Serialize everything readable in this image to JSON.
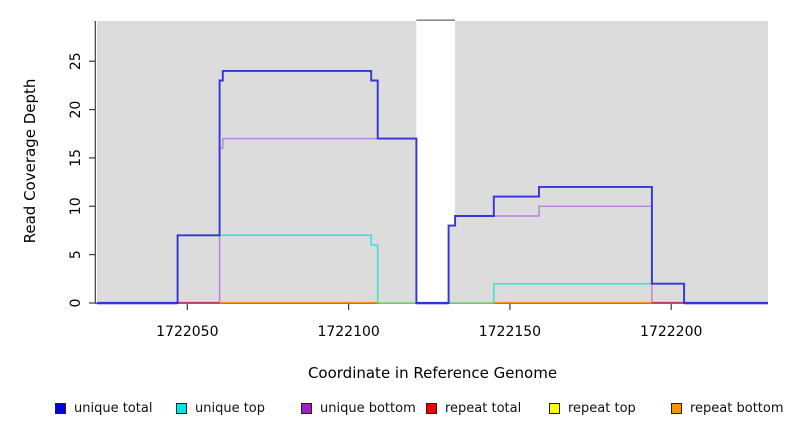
{
  "figure": {
    "xlabel": "Coordinate in Reference Genome",
    "ylabel": "Read Coverage Depth"
  },
  "chart_data": {
    "type": "line",
    "subtype": "step-coverage",
    "title": "",
    "xlabel": "Coordinate in Reference Genome",
    "ylabel": "Read Coverage Depth",
    "xlim": [
      1722022,
      1722230
    ],
    "ylim": [
      0,
      29
    ],
    "x_ticks": [
      1722050,
      1722100,
      1722150,
      1722200
    ],
    "y_ticks": [
      0,
      5,
      10,
      15,
      20,
      25
    ],
    "grid": false,
    "legend_position": "bottom",
    "series": [
      {
        "name": "unique total",
        "color": "#3434DA",
        "legend_color": "#0000EE",
        "steps": [
          [
            1722022,
            0
          ],
          [
            1722047,
            7
          ],
          [
            1722060,
            23
          ],
          [
            1722061,
            24
          ],
          [
            1722107,
            23
          ],
          [
            1722109,
            17
          ],
          [
            1722121,
            0
          ],
          [
            1722131,
            8
          ],
          [
            1722133,
            9
          ],
          [
            1722145,
            11
          ],
          [
            1722159,
            12
          ],
          [
            1722194,
            2
          ],
          [
            1722204,
            0
          ]
        ]
      },
      {
        "name": "unique top",
        "color": "#35E2D8",
        "legend_color": "#00E5EE",
        "steps": [
          [
            1722022,
            0
          ],
          [
            1722047,
            7
          ],
          [
            1722107,
            6
          ],
          [
            1722109,
            0
          ],
          [
            1722145,
            2
          ],
          [
            1722204,
            0
          ]
        ]
      },
      {
        "name": "unique bottom",
        "color": "#B77FDE",
        "legend_color": "#A21FCE",
        "steps": [
          [
            1722022,
            0
          ],
          [
            1722060,
            16
          ],
          [
            1722061,
            17
          ],
          [
            1722121,
            0
          ],
          [
            1722131,
            8
          ],
          [
            1722133,
            9
          ],
          [
            1722159,
            10
          ],
          [
            1722194,
            0
          ]
        ]
      },
      {
        "name": "repeat total",
        "color": "#DD2222",
        "legend_color": "#EE0000",
        "steps": [
          [
            1722022,
            0
          ]
        ]
      },
      {
        "name": "repeat top",
        "color": "#EEEE00",
        "legend_color": "#FFFF00",
        "steps": [
          [
            1722022,
            0
          ]
        ]
      },
      {
        "name": "repeat bottom",
        "color": "#FF8C1A",
        "legend_color": "#F59300",
        "steps": [
          [
            1722022,
            0
          ]
        ]
      }
    ],
    "covered_regions": [
      [
        1722022,
        1722121
      ],
      [
        1722133,
        1722230
      ]
    ],
    "uncovered_gap": [
      1722121,
      1722133
    ],
    "gap_patch": {
      "x": [
        1722131,
        1722133
      ],
      "height": 8
    },
    "baseline_segments": [
      [
        1722022,
        1722047,
        "baseline_blue"
      ],
      [
        1722047,
        1722060,
        "baseline_crimson"
      ],
      [
        1722060,
        1722109,
        "baseline_orange"
      ],
      [
        1722109,
        1722121,
        "baseline_green"
      ],
      [
        1722121,
        1722131,
        "baseline_gap"
      ],
      [
        1722131,
        1722145,
        "baseline_green"
      ],
      [
        1722145,
        1722194,
        "baseline_orange"
      ],
      [
        1722194,
        1722204,
        "baseline_crimson"
      ],
      [
        1722204,
        1722230,
        "baseline_blue"
      ]
    ],
    "baseline_fringe": [
      [
        1722022,
        1722047
      ],
      [
        1722121,
        1722131
      ],
      [
        1722204,
        1722230
      ]
    ],
    "colors": {
      "panel": "#DCDCDC",
      "axis": "#3A3A3A",
      "cap": "#8A8A8A",
      "fringe": "#C8B2EE",
      "baseline_blue": "#3434DA",
      "baseline_crimson": "#C03A66",
      "baseline_orange": "#FF8C1A",
      "baseline_green": "#8FD98F",
      "baseline_gap": "#4B38DC"
    }
  },
  "legend": {
    "items": [
      {
        "label": "unique total",
        "color": "#0000EE"
      },
      {
        "label": "unique top",
        "color": "#00E5EE"
      },
      {
        "label": "unique bottom",
        "color": "#A21FCE"
      },
      {
        "label": "repeat total",
        "color": "#EE0000"
      },
      {
        "label": "repeat top",
        "color": "#FFFF00"
      },
      {
        "label": "repeat bottom",
        "color": "#F59300"
      }
    ]
  }
}
